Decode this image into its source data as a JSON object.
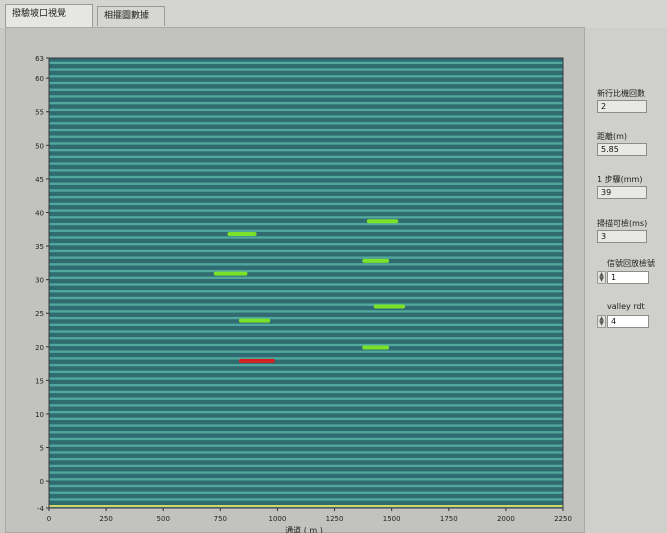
{
  "tabs": [
    "thumb-tab-1-label",
    "thumb-tab-2-label"
  ],
  "tab_labels": [
    "撥驗坡口視覺",
    "相擺圖數據"
  ],
  "indicators": [
    {
      "label": "新行比機回數",
      "value": "2"
    },
    {
      "label": "距離(m)",
      "value": "5.85"
    },
    {
      "label": "1 步驟(mm)",
      "value": "39"
    },
    {
      "label": "掃描可檢(ms)",
      "value": "3"
    }
  ],
  "controls": [
    {
      "label": "信號回放檢號",
      "value": "1"
    },
    {
      "label": "valley rdt",
      "value": "4"
    }
  ],
  "chart_data": {
    "type": "scatter",
    "title": "",
    "xlabel": "通道 ( m )",
    "ylabel": "",
    "xlim": [
      0,
      2250
    ],
    "ylim": [
      -4,
      63
    ],
    "xticks": [
      0,
      250,
      500,
      750,
      1000,
      1250,
      1500,
      1750,
      2000,
      2250
    ],
    "xtick_labels": [
      "0",
      "250",
      "500",
      "750",
      "1000",
      "1250",
      "1500",
      "1750",
      "2000",
      "2250"
    ],
    "yticks": [
      -4,
      0,
      5,
      10,
      15,
      20,
      25,
      30,
      35,
      40,
      45,
      50,
      55,
      60,
      63
    ],
    "ytick_labels": [
      "-4",
      "0",
      "5",
      "10",
      "15",
      "20",
      "25",
      "30",
      "35",
      "40",
      "45",
      "50",
      "55",
      "60",
      "63"
    ],
    "band_count": 67,
    "segments": [
      {
        "x0": 790,
        "x1": 900,
        "y": 36.8,
        "color": "#7be22a"
      },
      {
        "x0": 1400,
        "x1": 1520,
        "y": 38.7,
        "color": "#7be22a"
      },
      {
        "x0": 730,
        "x1": 860,
        "y": 30.9,
        "color": "#7be22a"
      },
      {
        "x0": 1380,
        "x1": 1480,
        "y": 32.8,
        "color": "#7be22a"
      },
      {
        "x0": 1430,
        "x1": 1550,
        "y": 26.0,
        "color": "#7be22a"
      },
      {
        "x0": 840,
        "x1": 960,
        "y": 23.9,
        "color": "#7be22a"
      },
      {
        "x0": 1380,
        "x1": 1480,
        "y": 19.9,
        "color": "#7be22a"
      },
      {
        "x0": 840,
        "x1": 980,
        "y": 17.9,
        "color": "#d42020"
      }
    ],
    "colors": {
      "band_dark": "#2f6b70",
      "band_light": "#52a89e",
      "baseline": "#d0d66a",
      "frame": "#3a3a3a"
    }
  }
}
